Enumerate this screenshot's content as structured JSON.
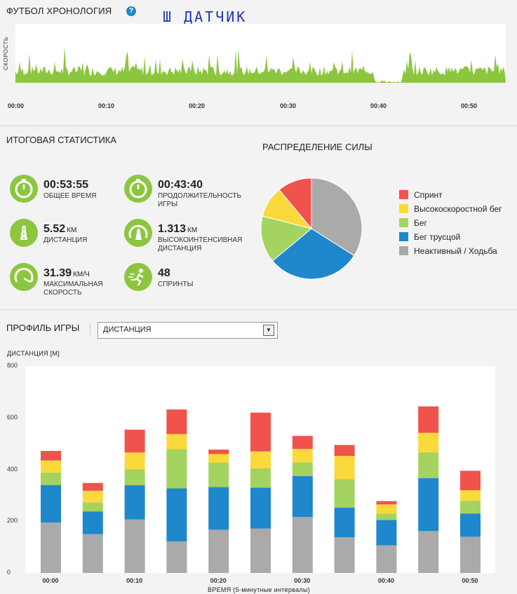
{
  "header": {
    "title": "ФУТБОЛ ХРОНОЛОГИЯ",
    "help_icon": "question-icon",
    "annotation": "Ш ДАТЧИК"
  },
  "timeline": {
    "ylabel": "СКОРОСТЬ",
    "ticks": [
      "00:00",
      "00:10",
      "00:20",
      "00:30",
      "00:40",
      "00:50"
    ],
    "color": "#8cc63f"
  },
  "summary": {
    "title": "ИТОГОВАЯ СТАТИСТИКА",
    "stats": [
      {
        "value": "00:53:55",
        "unit": "",
        "label": "ОБЩЕЕ ВРЕМЯ",
        "icon": "stopwatch-icon"
      },
      {
        "value": "00:43:40",
        "unit": "",
        "label": "ПРОДОЛЖИТЕЛЬНОСТЬ ИГРЫ",
        "icon": "stopwatch-icon"
      },
      {
        "value": "5.52",
        "unit": "КМ",
        "label": "ДИСТАНЦИЯ",
        "icon": "road-icon"
      },
      {
        "value": "1.313",
        "unit": "КМ",
        "label": "ВЫСОКОИНТЕНСИВНАЯ ДИСТАНЦИЯ",
        "icon": "high-intensity-road-icon"
      },
      {
        "value": "31.39",
        "unit": "КМ/Ч",
        "label": "МАКСИМАЛЬНАЯ СКОРОСТЬ",
        "icon": "speedometer-icon"
      },
      {
        "value": "48",
        "unit": "",
        "label": "СПРИНТЫ",
        "icon": "sprinter-icon"
      }
    ]
  },
  "force": {
    "title": "РАСПРЕДЕЛЕНИЕ СИЛЫ",
    "legend": [
      {
        "label": "Спринт",
        "color": "#f0524c"
      },
      {
        "label": "Высокоскоростной бег",
        "color": "#fcd93a"
      },
      {
        "label": "Бег",
        "color": "#a5d35f"
      },
      {
        "label": "Бег трусцой",
        "color": "#1f87cc"
      },
      {
        "label": "Неактивный / Ходьба",
        "color": "#aaaaaa"
      }
    ]
  },
  "profile": {
    "title": "ПРОФИЛЬ ИГРЫ",
    "select_value": "ДИСТАНЦИЯ",
    "ylabel": "ДИСТАНЦИЯ [М]",
    "xlabel": "ВРЕМЯ (5-минутные интервалы)"
  },
  "chart_data": [
    {
      "type": "pie",
      "title": "РАСПРЕДЕЛЕНИЕ СИЛЫ",
      "labels": [
        "Неактивный / Ходьба",
        "Бег трусцой",
        "Бег",
        "Высокоскоростной бег",
        "Спринт"
      ],
      "values": [
        34,
        30,
        15,
        10,
        11
      ],
      "colors": [
        "#aaaaaa",
        "#1f87cc",
        "#a5d35f",
        "#fcd93a",
        "#f0524c"
      ]
    },
    {
      "type": "bar",
      "stacked": true,
      "ylabel": "ДИСТАНЦИЯ [М]",
      "xlabel": "ВРЕМЯ (5-минутные интервалы)",
      "ylim": [
        0,
        800
      ],
      "yticks": [
        0,
        200,
        400,
        600,
        800
      ],
      "xticks": [
        "00:00",
        "00:10",
        "00:20",
        "00:30",
        "00:40",
        "00:50"
      ],
      "categories": [
        "1",
        "2",
        "3",
        "4",
        "5",
        "6",
        "7",
        "8",
        "9",
        "10",
        "11"
      ],
      "series": [
        {
          "name": "Неактивный / Ходьба",
          "color": "#aaaaaa",
          "values": [
            195,
            150,
            207,
            122,
            167,
            172,
            217,
            138,
            107,
            162,
            140
          ]
        },
        {
          "name": "Бег трусцой",
          "color": "#1f87cc",
          "values": [
            145,
            88,
            132,
            205,
            165,
            158,
            158,
            115,
            98,
            205,
            90
          ]
        },
        {
          "name": "Бег",
          "color": "#a5d35f",
          "values": [
            48,
            35,
            62,
            152,
            95,
            75,
            53,
            110,
            25,
            100,
            50
          ]
        },
        {
          "name": "Высокоскоростной бег",
          "color": "#fcd93a",
          "values": [
            47,
            45,
            65,
            58,
            33,
            65,
            52,
            90,
            35,
            75,
            40
          ]
        },
        {
          "name": "Спринт",
          "color": "#f0524c",
          "values": [
            37,
            30,
            88,
            95,
            17,
            150,
            50,
            42,
            13,
            102,
            75
          ]
        }
      ]
    }
  ]
}
